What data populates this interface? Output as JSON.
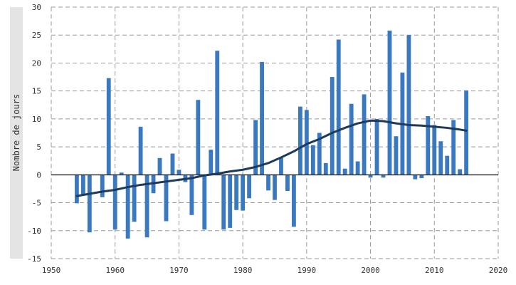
{
  "chart_data": {
    "type": "bar",
    "ylabel": "Nombre de jours",
    "xlim": [
      1950,
      2020
    ],
    "ylim": [
      -15,
      30
    ],
    "x_ticks": [
      1950,
      1960,
      1970,
      1980,
      1990,
      2000,
      2010,
      2020
    ],
    "y_ticks": [
      -15,
      -10,
      -5,
      0,
      5,
      10,
      15,
      20,
      25,
      30
    ],
    "grid": true,
    "bar_color": "#3a78bf",
    "trend_color": "#1f3b5c",
    "series": [
      {
        "type": "bar",
        "x": [
          1954,
          1955,
          1956,
          1957,
          1958,
          1959,
          1960,
          1961,
          1962,
          1963,
          1964,
          1965,
          1966,
          1967,
          1968,
          1969,
          1970,
          1971,
          1972,
          1973,
          1974,
          1975,
          1976,
          1977,
          1978,
          1979,
          1980,
          1981,
          1982,
          1983,
          1984,
          1985,
          1986,
          1987,
          1988,
          1989,
          1990,
          1991,
          1992,
          1993,
          1994,
          1995,
          1996,
          1997,
          1998,
          1999,
          2000,
          2001,
          2002,
          2003,
          2004,
          2005,
          2006,
          2007,
          2008,
          2009,
          2010,
          2011,
          2012,
          2013,
          2014,
          2015
        ],
        "values": [
          -5.1,
          -3.6,
          -10.3,
          0,
          -4.0,
          17.3,
          -9.8,
          0.4,
          -11.4,
          -8.4,
          8.6,
          -11.2,
          -3.3,
          3.0,
          -8.3,
          3.8,
          0.9,
          -1.3,
          -7.2,
          13.4,
          -9.8,
          4.5,
          22.2,
          -9.8,
          -9.5,
          -6.3,
          -6.4,
          -4.2,
          9.8,
          20.2,
          -2.8,
          -4.5,
          3.0,
          -2.9,
          -9.3,
          12.2,
          11.6,
          5.3,
          7.5,
          2.1,
          17.5,
          24.2,
          1.1,
          12.7,
          2.4,
          14.4,
          -0.5,
          10.0,
          -0.5,
          25.8,
          6.9,
          18.3,
          25.0,
          -0.8,
          -0.6,
          10.5,
          8.9,
          6.0,
          3.4,
          9.8,
          1.0,
          15.1
        ]
      },
      {
        "type": "line",
        "x": [
          1954,
          1956,
          1958,
          1960,
          1962,
          1964,
          1966,
          1968,
          1970,
          1972,
          1974,
          1976,
          1978,
          1980,
          1982,
          1984,
          1986,
          1988,
          1990,
          1992,
          1994,
          1996,
          1998,
          2000,
          2002,
          2004,
          2006,
          2008,
          2010,
          2012,
          2014,
          2015
        ],
        "values": [
          -3.8,
          -3.4,
          -3.0,
          -2.7,
          -2.2,
          -1.8,
          -1.5,
          -1.2,
          -0.9,
          -0.6,
          -0.1,
          0.2,
          0.6,
          0.9,
          1.4,
          2.1,
          3.1,
          4.2,
          5.5,
          6.4,
          7.5,
          8.4,
          9.2,
          9.7,
          9.6,
          9.2,
          8.9,
          8.8,
          8.6,
          8.4,
          8.1,
          7.9
        ]
      }
    ]
  }
}
